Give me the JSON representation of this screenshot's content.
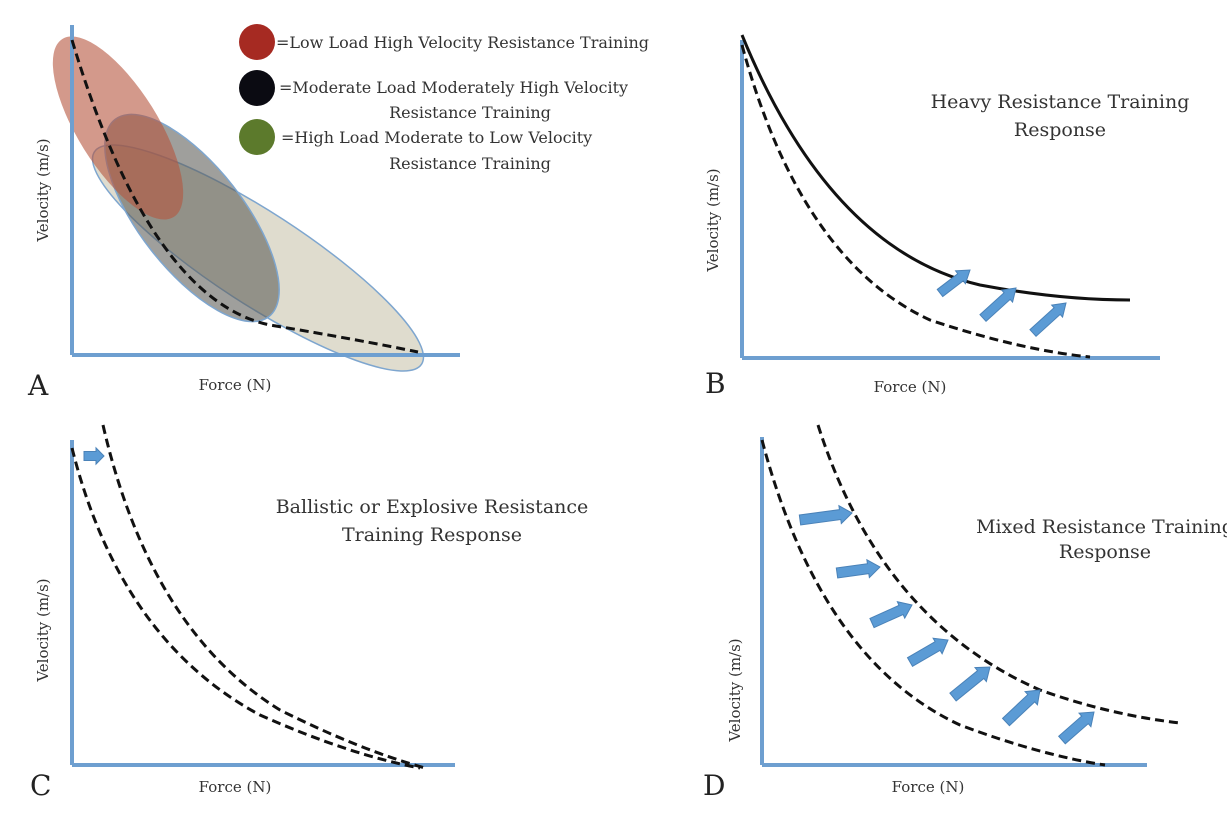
{
  "colors": {
    "axis": "#6e9fd0",
    "arrow": "#5b9bd5",
    "low_load": "#b03a2e",
    "moderate_load": "#111111",
    "high_load": "#5a7a2e"
  },
  "panel_a": {
    "letter": "A",
    "xlabel": "Force (N)",
    "ylabel": "Velocity (m/s)",
    "legend": [
      {
        "lines": [
          "=Low Load High Velocity Resistance Training"
        ]
      },
      {
        "lines": [
          "=Moderate Load Moderately High Velocity",
          "Resistance Training"
        ]
      },
      {
        "lines": [
          "=High Load Moderate to Low Velocity",
          "Resistance Training"
        ]
      }
    ]
  },
  "panel_b": {
    "letter": "B",
    "xlabel": "Force (N)",
    "ylabel": "Velocity (m/s)",
    "title": [
      "Heavy Resistance Training",
      "Response"
    ]
  },
  "panel_c": {
    "letter": "C",
    "xlabel": "Force (N)",
    "ylabel": "Velocity (m/s)",
    "title": [
      "Ballistic or Explosive Resistance",
      "Training Response"
    ]
  },
  "panel_d": {
    "letter": "D",
    "xlabel": "Force (N)",
    "ylabel": "Velocity (m/s)",
    "title": [
      "Mixed Resistance Training",
      "Response"
    ]
  }
}
